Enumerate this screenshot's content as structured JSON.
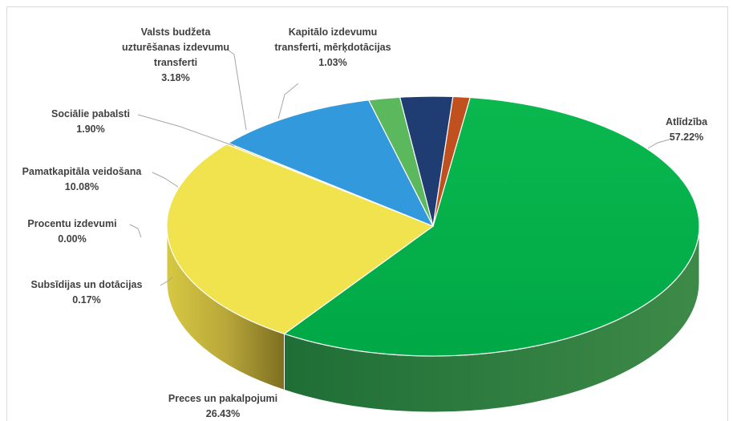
{
  "chart_data": {
    "type": "pie",
    "style": "3d",
    "title": "",
    "slices": [
      {
        "label": "Atlīdzība",
        "value": 57.22,
        "display": "57.22%",
        "color": "#00b050"
      },
      {
        "label": "Preces un pakalpojumi",
        "value": 26.43,
        "display": "26.43%",
        "color": "#f0e34e"
      },
      {
        "label": "Subsīdijas un dotācijas",
        "value": 0.17,
        "display": "0.17%",
        "color": "#e6c93e"
      },
      {
        "label": "Procentu izdevumi",
        "value": 0.0,
        "display": "0.00%",
        "color": "#c9b23a"
      },
      {
        "label": "Pamatkapitāla veidošana",
        "value": 10.08,
        "display": "10.08%",
        "color": "#3399dd"
      },
      {
        "label": "Sociālie pabalsti",
        "value": 1.9,
        "display": "1.90%",
        "color": "#5cb85c"
      },
      {
        "label": "Valsts budžeta uzturēšanas izdevumu transferti",
        "value": 3.18,
        "display": "3.18%",
        "color": "#1f3d73"
      },
      {
        "label": "Kapitālo izdevumu transferti, mērķdotācijas",
        "value": 1.03,
        "display": "1.03%",
        "color": "#c0501e"
      }
    ],
    "legend": "none",
    "data_labels": "outside with leader lines"
  }
}
